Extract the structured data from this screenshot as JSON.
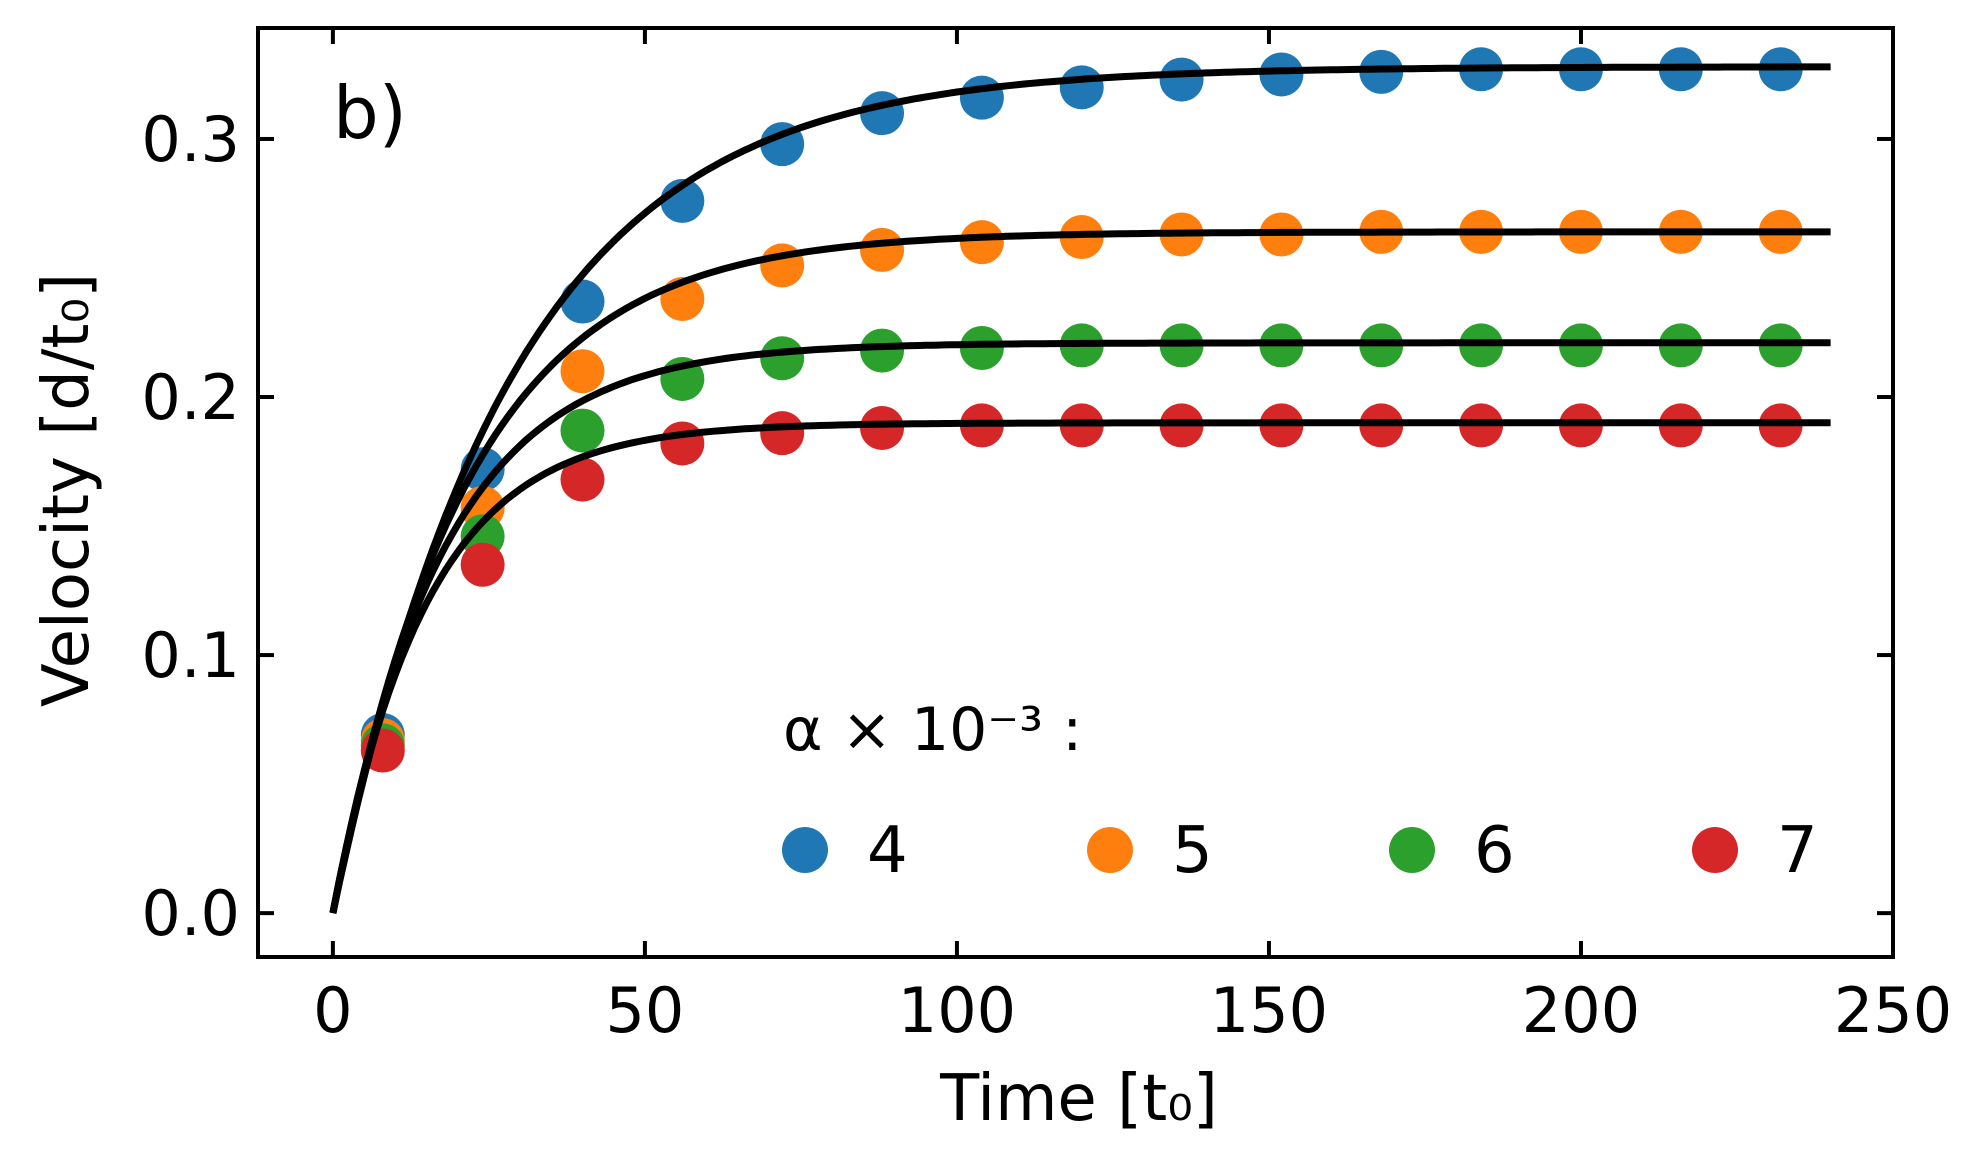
{
  "chart_data": {
    "type": "scatter",
    "panel_label": "b)",
    "xlabel": "Time [t₀]",
    "ylabel": "Velocity [d/t₀]",
    "xlim": [
      -12,
      250
    ],
    "ylim": [
      -0.017,
      0.343
    ],
    "xticks": [
      0,
      50,
      100,
      150,
      200,
      250
    ],
    "xtick_labels": [
      "0",
      "50",
      "100",
      "150",
      "200",
      "250"
    ],
    "yticks": [
      0.0,
      0.1,
      0.2,
      0.3
    ],
    "ytick_labels": [
      "0.0",
      "0.1",
      "0.2",
      "0.3"
    ],
    "legend_title": "α × 10⁻³ :",
    "legend_position": "lower-right",
    "x": [
      8,
      24,
      40,
      56,
      72,
      88,
      104,
      120,
      136,
      152,
      168,
      184,
      200,
      216,
      232
    ],
    "series": [
      {
        "name": "4",
        "color": "#1f77b4",
        "values": [
          0.069,
          0.172,
          0.237,
          0.276,
          0.298,
          0.31,
          0.316,
          0.32,
          0.323,
          0.325,
          0.326,
          0.327,
          0.327,
          0.327,
          0.327
        ],
        "fit": {
          "vmax": 0.328,
          "tau": 28.5
        }
      },
      {
        "name": "5",
        "color": "#ff7f0e",
        "values": [
          0.067,
          0.157,
          0.21,
          0.238,
          0.251,
          0.257,
          0.26,
          0.262,
          0.263,
          0.263,
          0.264,
          0.264,
          0.264,
          0.264,
          0.264
        ],
        "fit": {
          "vmax": 0.264,
          "tau": 21.5
        }
      },
      {
        "name": "6",
        "color": "#2ca02c",
        "values": [
          0.065,
          0.146,
          0.187,
          0.207,
          0.215,
          0.218,
          0.219,
          0.22,
          0.22,
          0.22,
          0.22,
          0.22,
          0.22,
          0.22,
          0.22
        ],
        "fit": {
          "vmax": 0.221,
          "tau": 17.5
        }
      },
      {
        "name": "7",
        "color": "#d62728",
        "values": [
          0.063,
          0.135,
          0.168,
          0.182,
          0.186,
          0.188,
          0.189,
          0.189,
          0.189,
          0.189,
          0.189,
          0.189,
          0.189,
          0.189,
          0.189
        ],
        "fit": {
          "vmax": 0.19,
          "tau": 15.0
        }
      }
    ],
    "fit_curve": {
      "color": "#000000",
      "x_range": [
        0,
        240
      ]
    }
  }
}
